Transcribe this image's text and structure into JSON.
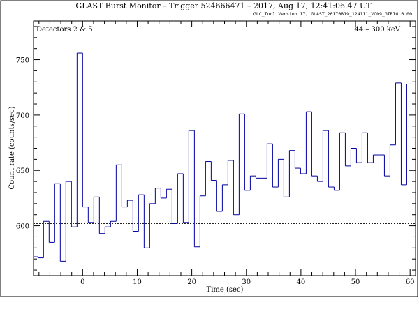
{
  "chart_data": {
    "type": "line",
    "title": "GLAST Burst Monitor  –  Trigger 524666471  –  2017, Aug 17, 12:41:06.47 UT",
    "subtitle": "GLC_Tool Version 17; GLAST_20170819_124111_VC09_GTRIG.0.00",
    "annotation_left": "Detectors 2 & 5",
    "annotation_right": "44 – 300 keV",
    "xlabel": "Time (sec)",
    "ylabel": "Count rate (counts/sec)",
    "xlim": [
      -9,
      61
    ],
    "ylim": [
      555,
      785
    ],
    "x_ticks": [
      0,
      10,
      20,
      30,
      40,
      50,
      60
    ],
    "y_ticks": [
      600,
      650,
      700,
      750
    ],
    "grid": false,
    "background_level": 602,
    "series": [
      {
        "color": "#0000a0",
        "bin_width": 1.024,
        "bin_start": -9.216,
        "values": [
          572,
          571,
          604,
          585,
          638,
          568,
          640,
          599,
          756,
          617,
          603,
          626,
          593,
          599,
          604,
          655,
          617,
          623,
          595,
          628,
          580,
          620,
          634,
          625,
          633,
          602,
          647,
          603,
          686,
          581,
          627,
          658,
          641,
          613,
          637,
          659,
          610,
          701,
          632,
          645,
          643,
          643,
          674,
          635,
          660,
          626,
          668,
          652,
          647,
          703,
          645,
          640,
          686,
          635,
          632,
          684,
          654,
          670,
          657,
          684,
          657,
          664,
          664,
          645,
          673,
          729,
          637,
          728
        ]
      }
    ]
  }
}
